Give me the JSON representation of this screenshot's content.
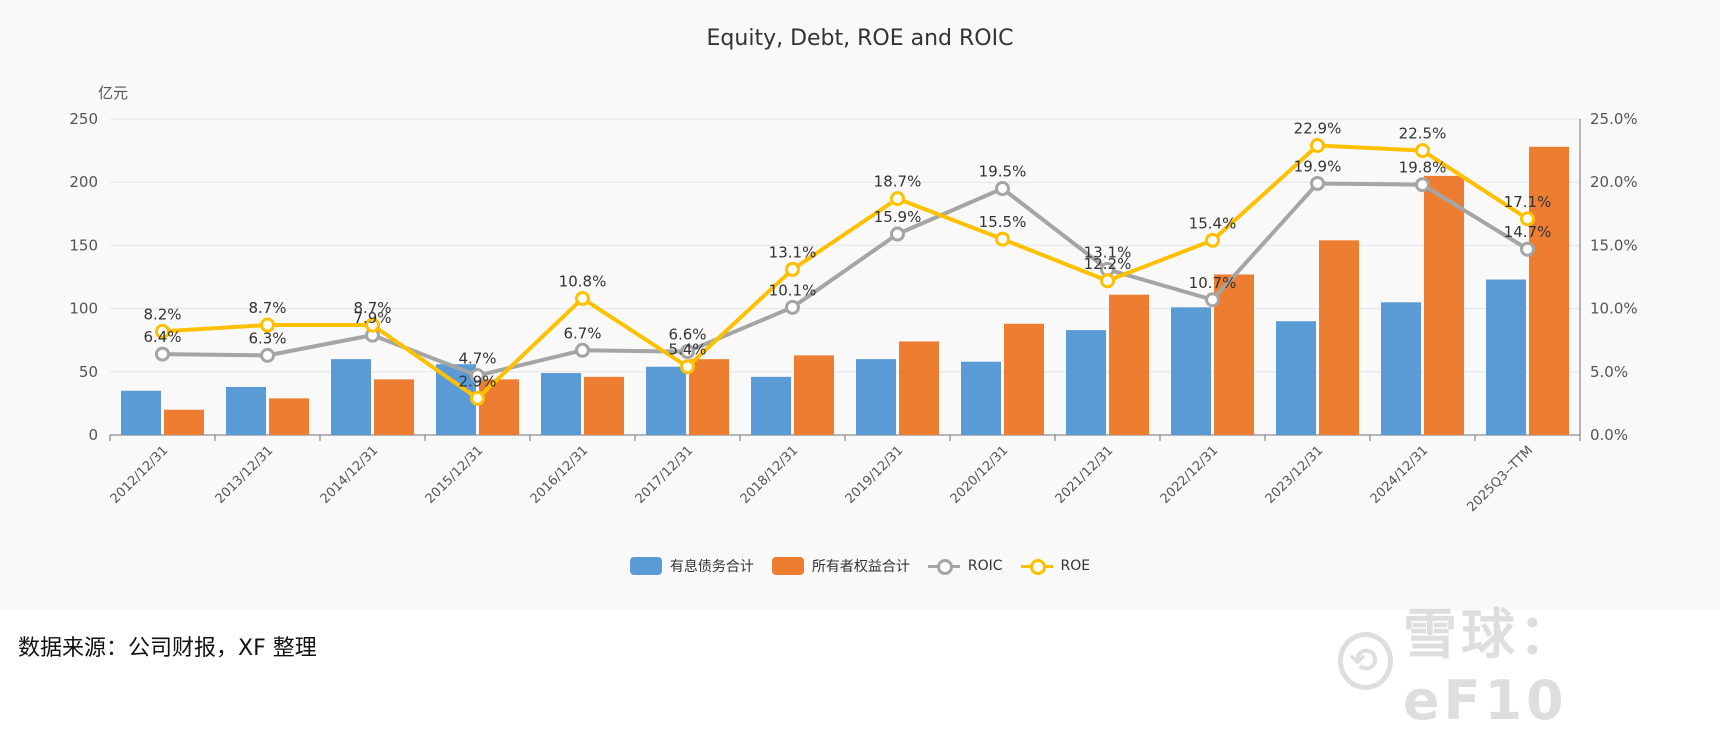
{
  "chart_data": {
    "type": "bar",
    "title": "Equity, Debt, ROE and ROIC",
    "y_unit": "亿元",
    "categories": [
      "2012/12/31",
      "2013/12/31",
      "2014/12/31",
      "2015/12/31",
      "2016/12/31",
      "2017/12/31",
      "2018/12/31",
      "2019/12/31",
      "2020/12/31",
      "2021/12/31",
      "2022/12/31",
      "2023/12/31",
      "2024/12/31",
      "2025Q3--TTM"
    ],
    "ylim": [
      0,
      250
    ],
    "yticks": [
      "0",
      "50",
      "100",
      "150",
      "200",
      "250"
    ],
    "y2lim": [
      0,
      25
    ],
    "y2ticks": [
      "0.0%",
      "5.0%",
      "10.0%",
      "15.0%",
      "20.0%",
      "25.0%"
    ],
    "bar_series": [
      {
        "name": "有息债务合计",
        "color": "#5b9bd5",
        "values": [
          35,
          38,
          60,
          56,
          49,
          54,
          46,
          60,
          58,
          83,
          101,
          90,
          105,
          123
        ]
      },
      {
        "name": "所有者权益合计",
        "color": "#ed7d31",
        "values": [
          20,
          29,
          44,
          44,
          46,
          60,
          63,
          74,
          88,
          111,
          127,
          154,
          205,
          228
        ]
      }
    ],
    "line_series": [
      {
        "name": "ROIC",
        "color": "#a5a5a5",
        "values": [
          6.4,
          6.3,
          7.9,
          4.7,
          6.7,
          6.6,
          10.1,
          15.9,
          19.5,
          13.1,
          10.7,
          19.9,
          19.8,
          14.7
        ],
        "labels": [
          "6.4%",
          "6.3%",
          "7.9%",
          "4.7%",
          "6.7%",
          "6.6%",
          "10.1%",
          "15.9%",
          "19.5%",
          "13.1%",
          "10.7%",
          "19.9%",
          "19.8%",
          "14.7%"
        ]
      },
      {
        "name": "ROE",
        "color": "#ffc000",
        "values": [
          8.2,
          8.7,
          8.7,
          2.9,
          10.8,
          5.4,
          13.1,
          18.7,
          15.5,
          12.2,
          15.4,
          22.9,
          22.5,
          17.1
        ],
        "labels": [
          "8.2%",
          "8.7%",
          "8.7%",
          "2.9%",
          "10.8%",
          "5.4%",
          "13.1%",
          "18.7%",
          "15.5%",
          "12.2%",
          "15.4%",
          "22.9%",
          "22.5%",
          "17.1%"
        ]
      }
    ]
  },
  "legend": [
    "有息债务合计",
    "所有者权益合计",
    "ROIC",
    "ROE"
  ],
  "source": "数据来源：公司财报，XF 整理",
  "watermark": {
    "logo": "⟲",
    "text": "雪球：eF10"
  }
}
